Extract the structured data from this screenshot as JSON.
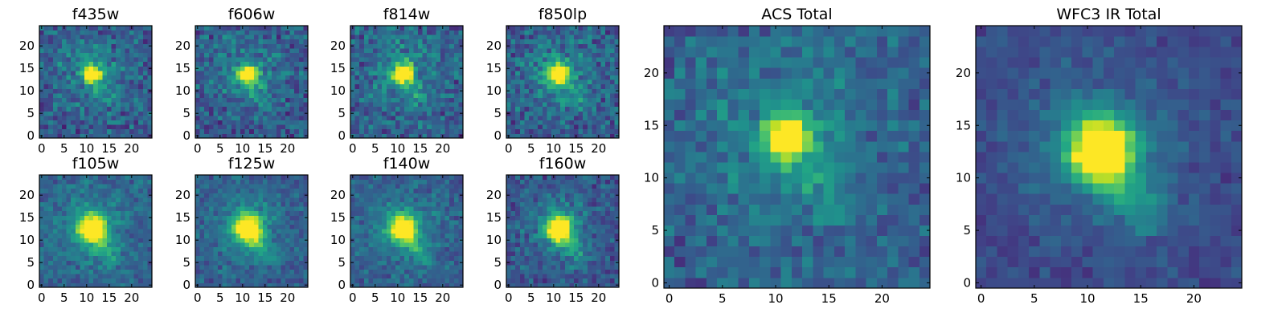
{
  "chart_data": {
    "type": "heatmap",
    "grid_size": 25,
    "colormap": "viridis",
    "tick_values": [
      0,
      5,
      10,
      15,
      20
    ],
    "image_range": [
      0,
      25
    ],
    "panels": [
      {
        "id": "f435w",
        "title": "f435w",
        "core": [
          11,
          14
        ],
        "core_width": 1.3,
        "tail_strength": 0.35,
        "noise": 0.45,
        "background": 0.28
      },
      {
        "id": "f606w",
        "title": "f606w",
        "core": [
          11,
          14
        ],
        "core_width": 1.3,
        "tail_strength": 0.4,
        "noise": 0.45,
        "background": 0.28
      },
      {
        "id": "f814w",
        "title": "f814w",
        "core": [
          11,
          14
        ],
        "core_width": 1.4,
        "tail_strength": 0.45,
        "noise": 0.45,
        "background": 0.3
      },
      {
        "id": "f850lp",
        "title": "f850lp",
        "core": [
          11,
          14
        ],
        "core_width": 1.4,
        "tail_strength": 0.5,
        "noise": 0.45,
        "background": 0.3
      },
      {
        "id": "f105w",
        "title": "f105w",
        "core": [
          11,
          13
        ],
        "core_width": 1.9,
        "tail_strength": 0.75,
        "noise": 0.3,
        "background": 0.32
      },
      {
        "id": "f125w",
        "title": "f125w",
        "core": [
          11,
          13
        ],
        "core_width": 1.9,
        "tail_strength": 0.75,
        "noise": 0.3,
        "background": 0.3
      },
      {
        "id": "f140w",
        "title": "f140w",
        "core": [
          11,
          13
        ],
        "core_width": 1.9,
        "tail_strength": 0.75,
        "noise": 0.3,
        "background": 0.3
      },
      {
        "id": "f160w",
        "title": "f160w",
        "core": [
          11,
          13
        ],
        "core_width": 1.9,
        "tail_strength": 0.8,
        "noise": 0.35,
        "background": 0.26
      },
      {
        "id": "acs-total",
        "title": "ACS Total",
        "core": [
          11,
          14
        ],
        "core_width": 1.3,
        "tail_strength": 0.45,
        "noise": 0.35,
        "background": 0.3
      },
      {
        "id": "wfc3-ir-total",
        "title": "WFC3 IR Total",
        "core": [
          11,
          13
        ],
        "core_width": 2.0,
        "tail_strength": 0.85,
        "noise": 0.2,
        "background": 0.22
      }
    ]
  }
}
